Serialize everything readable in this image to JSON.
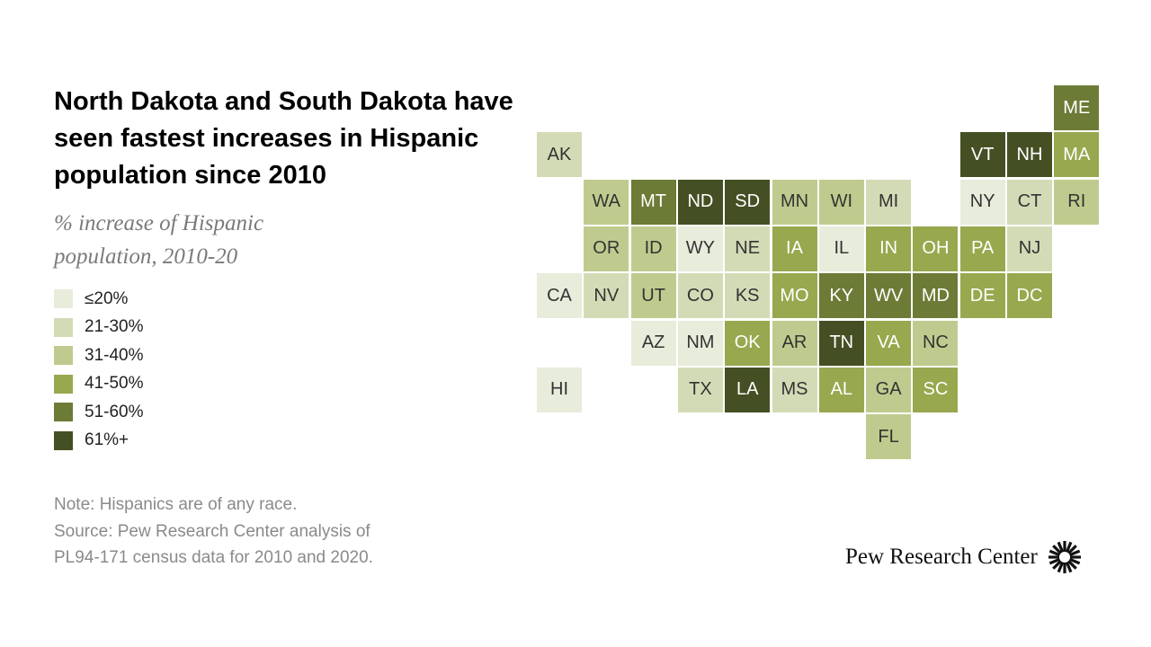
{
  "title": "North Dakota and South Dakota have seen fastest increases in Hispanic population since 2010",
  "subtitle": "% increase of Hispanic population, 2010-20",
  "legend": [
    {
      "label": "≤20%",
      "color": "#e8ecdb"
    },
    {
      "label": "21-30%",
      "color": "#d3dbb6"
    },
    {
      "label": "31-40%",
      "color": "#bfcb8e"
    },
    {
      "label": "41-50%",
      "color": "#97a84e"
    },
    {
      "label": "51-60%",
      "color": "#6c7b35"
    },
    {
      "label": "61%+",
      "color": "#454f24"
    }
  ],
  "note": "Note: Hispanics are of any race.",
  "source_line1": "Source: Pew Research Center analysis of",
  "source_line2": "PL94-171 census data for 2010 and 2020.",
  "logo_text": "Pew Research Center",
  "logo_icon": "pew-sunburst-icon",
  "states": [
    {
      "abbr": "ME",
      "bin": 4
    },
    {
      "abbr": "AK",
      "bin": 1
    },
    {
      "abbr": "VT",
      "bin": 5
    },
    {
      "abbr": "NH",
      "bin": 5
    },
    {
      "abbr": "MA",
      "bin": 3
    },
    {
      "abbr": "WA",
      "bin": 2
    },
    {
      "abbr": "MT",
      "bin": 4
    },
    {
      "abbr": "ND",
      "bin": 5
    },
    {
      "abbr": "SD",
      "bin": 5
    },
    {
      "abbr": "MN",
      "bin": 2
    },
    {
      "abbr": "WI",
      "bin": 2
    },
    {
      "abbr": "MI",
      "bin": 1
    },
    {
      "abbr": "NY",
      "bin": 0
    },
    {
      "abbr": "CT",
      "bin": 1
    },
    {
      "abbr": "RI",
      "bin": 2
    },
    {
      "abbr": "OR",
      "bin": 2
    },
    {
      "abbr": "ID",
      "bin": 2
    },
    {
      "abbr": "WY",
      "bin": 0
    },
    {
      "abbr": "NE",
      "bin": 1
    },
    {
      "abbr": "IA",
      "bin": 3
    },
    {
      "abbr": "IL",
      "bin": 0
    },
    {
      "abbr": "IN",
      "bin": 3
    },
    {
      "abbr": "OH",
      "bin": 3
    },
    {
      "abbr": "PA",
      "bin": 3
    },
    {
      "abbr": "NJ",
      "bin": 1
    },
    {
      "abbr": "CA",
      "bin": 0
    },
    {
      "abbr": "NV",
      "bin": 1
    },
    {
      "abbr": "UT",
      "bin": 2
    },
    {
      "abbr": "CO",
      "bin": 1
    },
    {
      "abbr": "KS",
      "bin": 1
    },
    {
      "abbr": "MO",
      "bin": 3
    },
    {
      "abbr": "KY",
      "bin": 4
    },
    {
      "abbr": "WV",
      "bin": 4
    },
    {
      "abbr": "MD",
      "bin": 4
    },
    {
      "abbr": "DE",
      "bin": 3
    },
    {
      "abbr": "DC",
      "bin": 3
    },
    {
      "abbr": "AZ",
      "bin": 0
    },
    {
      "abbr": "NM",
      "bin": 0
    },
    {
      "abbr": "OK",
      "bin": 3
    },
    {
      "abbr": "AR",
      "bin": 2
    },
    {
      "abbr": "TN",
      "bin": 5
    },
    {
      "abbr": "VA",
      "bin": 3
    },
    {
      "abbr": "NC",
      "bin": 2
    },
    {
      "abbr": "HI",
      "bin": 0
    },
    {
      "abbr": "TX",
      "bin": 1
    },
    {
      "abbr": "LA",
      "bin": 5
    },
    {
      "abbr": "MS",
      "bin": 1
    },
    {
      "abbr": "AL",
      "bin": 3
    },
    {
      "abbr": "GA",
      "bin": 2
    },
    {
      "abbr": "SC",
      "bin": 3
    },
    {
      "abbr": "FL",
      "bin": 2
    }
  ]
}
